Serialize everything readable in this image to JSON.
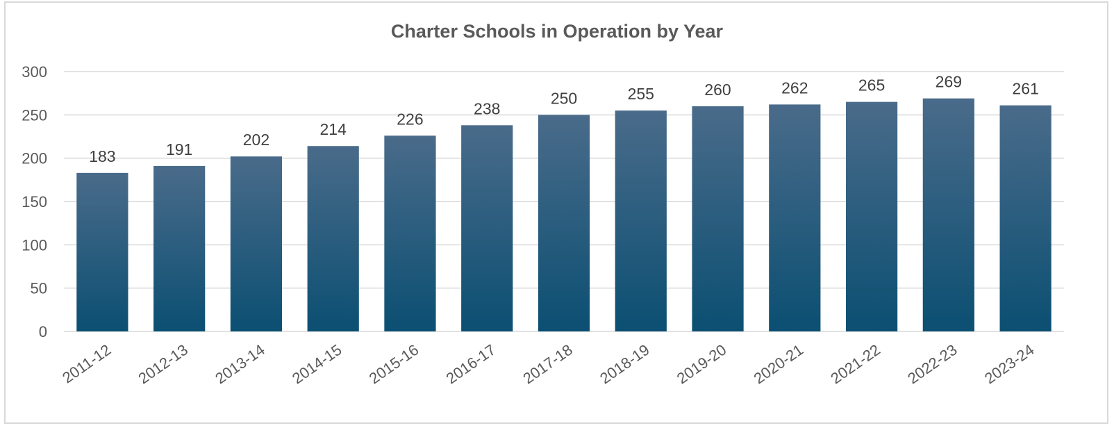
{
  "chart_data": {
    "type": "bar",
    "title": "Charter Schools in Operation by Year",
    "xlabel": "",
    "ylabel": "",
    "categories": [
      "2011-12",
      "2012-13",
      "2013-14",
      "2014-15",
      "2015-16",
      "2016-17",
      "2017-18",
      "2018-19",
      "2019-20",
      "2020-21",
      "2021-22",
      "2022-23",
      "2023-24"
    ],
    "values": [
      183,
      191,
      202,
      214,
      226,
      238,
      250,
      255,
      260,
      262,
      265,
      269,
      261
    ],
    "ylim": [
      0,
      300
    ],
    "yticks": [
      0,
      50,
      100,
      150,
      200,
      250,
      300
    ],
    "grid": true,
    "legend": "none",
    "data_labels": true,
    "colors": {
      "bar_top": "#4a6b8a",
      "bar_bottom": "#0b4f72",
      "grid": "#d9d9d9",
      "text": "#595959"
    }
  }
}
